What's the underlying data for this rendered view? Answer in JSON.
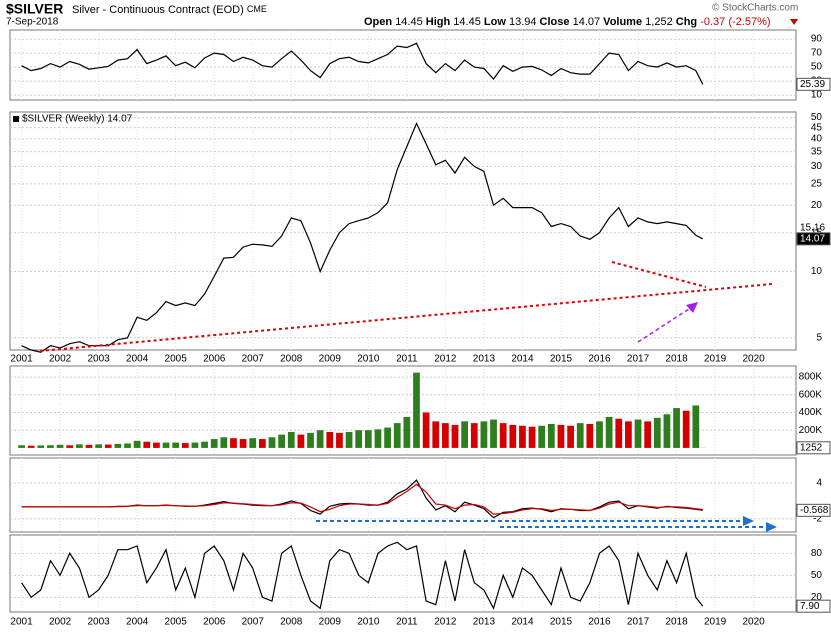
{
  "header": {
    "symbol": "$SILVER",
    "name": "Silver - Continuous Contract (EOD)",
    "exchange": "CME",
    "date": "7-Sep-2018",
    "open_label": "Open",
    "open": "14.45",
    "high_label": "High",
    "high": "14.45",
    "low_label": "Low",
    "low": "13.94",
    "close_label": "Close",
    "close": "14.07",
    "volume_label": "Volume",
    "volume": "1,252",
    "chg_label": "Chg",
    "chg": "-0.37 (-2.57%)",
    "credit": "© StockCharts.com"
  },
  "time_axis": {
    "xlim": [
      2000.7,
      2021.1
    ],
    "xticks": [
      2001,
      2002,
      2003,
      2004,
      2005,
      2006,
      2007,
      2008,
      2009,
      2010,
      2011,
      2012,
      2013,
      2014,
      2015,
      2016,
      2017,
      2018,
      2019,
      2020
    ],
    "x": [
      2001,
      2001.25,
      2001.5,
      2001.75,
      2002,
      2002.25,
      2002.5,
      2002.75,
      2003,
      2003.25,
      2003.5,
      2003.75,
      2004,
      2004.25,
      2004.5,
      2004.75,
      2005,
      2005.25,
      2005.5,
      2005.75,
      2006,
      2006.25,
      2006.5,
      2006.75,
      2007,
      2007.25,
      2007.5,
      2007.75,
      2008,
      2008.25,
      2008.5,
      2008.75,
      2009,
      2009.25,
      2009.5,
      2009.75,
      2010,
      2010.25,
      2010.5,
      2010.75,
      2011,
      2011.25,
      2011.5,
      2011.75,
      2012,
      2012.25,
      2012.5,
      2012.75,
      2013,
      2013.25,
      2013.5,
      2013.75,
      2014,
      2014.25,
      2014.5,
      2014.75,
      2015,
      2015.25,
      2015.5,
      2015.75,
      2016,
      2016.25,
      2016.5,
      2016.75,
      2017,
      2017.25,
      2017.5,
      2017.75,
      2018,
      2018.25,
      2018.5,
      2018.68
    ]
  },
  "chart_data": [
    {
      "type": "line",
      "ylim": [
        3,
        103
      ],
      "yticks": [
        10,
        30,
        50,
        70,
        90
      ],
      "grid": true,
      "series": [
        {
          "color": "#000000",
          "values": [
            52,
            45,
            48,
            55,
            50,
            58,
            54,
            47,
            49,
            51,
            60,
            62,
            75,
            55,
            60,
            66,
            52,
            57,
            49,
            63,
            70,
            68,
            58,
            64,
            60,
            52,
            50,
            62,
            73,
            60,
            45,
            35,
            55,
            62,
            64,
            58,
            56,
            62,
            68,
            80,
            78,
            84,
            55,
            42,
            55,
            45,
            60,
            50,
            48,
            33,
            52,
            44,
            50,
            51,
            46,
            38,
            48,
            42,
            40,
            40,
            55,
            70,
            68,
            45,
            58,
            52,
            50,
            56,
            50,
            52,
            45,
            25.39
          ]
        }
      ]
    },
    {
      "type": "line",
      "log": true,
      "legend_text": "$SILVER (Weekly) 14.07",
      "trend_label": "15.16",
      "ylim": [
        4.4,
        53
      ],
      "yticks": [
        5,
        10,
        15,
        20,
        25,
        30,
        35,
        40,
        45,
        50
      ],
      "grid": true,
      "series": [
        {
          "color": "#000000",
          "values": [
            4.6,
            4.4,
            4.3,
            4.6,
            4.5,
            4.7,
            4.8,
            4.6,
            4.6,
            4.6,
            4.9,
            5.0,
            6.2,
            6.0,
            6.5,
            7.3,
            7.0,
            7.2,
            7.0,
            7.9,
            9.5,
            11.5,
            11.6,
            12.9,
            13.3,
            13.2,
            13.0,
            14.5,
            17.5,
            17.0,
            13.5,
            10.0,
            12.5,
            15.0,
            16.5,
            17.0,
            17.5,
            18.5,
            20.5,
            29.0,
            37.0,
            47.0,
            38.0,
            30.5,
            32.0,
            28.0,
            33.0,
            30.0,
            28.5,
            20.0,
            21.5,
            19.5,
            19.5,
            19.5,
            18.5,
            16.0,
            16.5,
            16.0,
            14.5,
            14.0,
            15.0,
            17.5,
            19.5,
            16.0,
            17.5,
            16.8,
            16.5,
            16.8,
            16.5,
            16.2,
            14.6,
            14.07
          ]
        }
      ]
    },
    {
      "type": "bar",
      "ylim": [
        -80000,
        925000
      ],
      "yticks": [
        {
          "value": 200000,
          "label": "200K"
        },
        {
          "value": 400000,
          "label": "400K"
        },
        {
          "value": 600000,
          "label": "600K"
        },
        {
          "value": 800000,
          "label": "800K"
        }
      ],
      "grid": true,
      "up_color": "#2e7d1e",
      "down_color": "#d40000",
      "series": [
        {
          "values": [
            30000,
            25000,
            28000,
            30000,
            35000,
            30000,
            40000,
            35000,
            40000,
            38000,
            45000,
            50000,
            80000,
            70000,
            60000,
            60000,
            60000,
            55000,
            60000,
            70000,
            100000,
            120000,
            110000,
            100000,
            110000,
            100000,
            120000,
            150000,
            180000,
            150000,
            170000,
            200000,
            180000,
            170000,
            180000,
            200000,
            200000,
            210000,
            230000,
            280000,
            350000,
            850000,
            400000,
            300000,
            280000,
            260000,
            300000,
            280000,
            300000,
            320000,
            280000,
            260000,
            250000,
            240000,
            250000,
            270000,
            260000,
            250000,
            280000,
            270000,
            300000,
            350000,
            330000,
            300000,
            320000,
            300000,
            340000,
            380000,
            450000,
            420000,
            480000,
            1252
          ]
        }
      ]
    },
    {
      "type": "line",
      "ylim": [
        -4.2,
        8.2
      ],
      "yticks": [
        -2,
        4
      ],
      "grid": true,
      "series": [
        {
          "color": "#000000",
          "values": [
            0,
            0,
            0,
            0,
            0,
            0,
            0,
            0,
            0,
            0,
            0.1,
            0.1,
            0.3,
            0.2,
            0.2,
            0.3,
            0.2,
            0.1,
            0.1,
            0.3,
            0.6,
            0.9,
            0.6,
            0.5,
            0.3,
            0.2,
            0.2,
            0.5,
            1.0,
            0.6,
            -0.6,
            -1.2,
            0.1,
            0.5,
            0.6,
            0.5,
            0.3,
            0.3,
            0.8,
            2.2,
            3.0,
            4.5,
            1.5,
            -0.5,
            0.2,
            -0.8,
            0.8,
            0.3,
            -0.3,
            -1.8,
            -0.9,
            -0.8,
            -0.3,
            -0.2,
            -0.4,
            -0.8,
            -0.3,
            -0.4,
            -0.6,
            -0.6,
            0.0,
            0.8,
            1.0,
            -0.3,
            0.2,
            0.0,
            -0.2,
            0.1,
            -0.1,
            -0.2,
            -0.4,
            -0.568
          ]
        },
        {
          "color": "#cc0000",
          "values": [
            0,
            0,
            0,
            0,
            0,
            0,
            0,
            0,
            0,
            0,
            0.05,
            0.1,
            0.2,
            0.2,
            0.2,
            0.25,
            0.2,
            0.15,
            0.1,
            0.2,
            0.4,
            0.7,
            0.65,
            0.55,
            0.4,
            0.3,
            0.2,
            0.35,
            0.7,
            0.65,
            0.0,
            -0.8,
            -0.4,
            0.2,
            0.5,
            0.5,
            0.4,
            0.3,
            0.6,
            1.6,
            2.6,
            3.8,
            2.5,
            0.5,
            0.3,
            -0.3,
            0.3,
            0.4,
            0.0,
            -1.2,
            -1.1,
            -0.9,
            -0.5,
            -0.3,
            -0.3,
            -0.6,
            -0.4,
            -0.4,
            -0.5,
            -0.6,
            -0.2,
            0.5,
            0.8,
            0.2,
            0.2,
            0.1,
            -0.1,
            0.0,
            0.0,
            -0.1,
            -0.3,
            -0.45
          ]
        }
      ]
    },
    {
      "type": "line",
      "last_label": "7.90",
      "ylim": [
        0,
        105
      ],
      "yticks": [
        20,
        50,
        80
      ],
      "grid": true,
      "series": [
        {
          "color": "#000000",
          "values": [
            40,
            20,
            30,
            70,
            50,
            80,
            60,
            20,
            30,
            50,
            85,
            85,
            90,
            40,
            60,
            85,
            30,
            60,
            20,
            80,
            90,
            70,
            30,
            80,
            60,
            20,
            15,
            80,
            90,
            50,
            15,
            5,
            70,
            85,
            80,
            50,
            40,
            80,
            90,
            95,
            85,
            90,
            15,
            10,
            70,
            15,
            85,
            40,
            30,
            5,
            50,
            20,
            60,
            50,
            30,
            10,
            60,
            20,
            15,
            40,
            80,
            90,
            70,
            10,
            80,
            50,
            30,
            70,
            40,
            80,
            20,
            7.9
          ]
        }
      ]
    }
  ]
}
